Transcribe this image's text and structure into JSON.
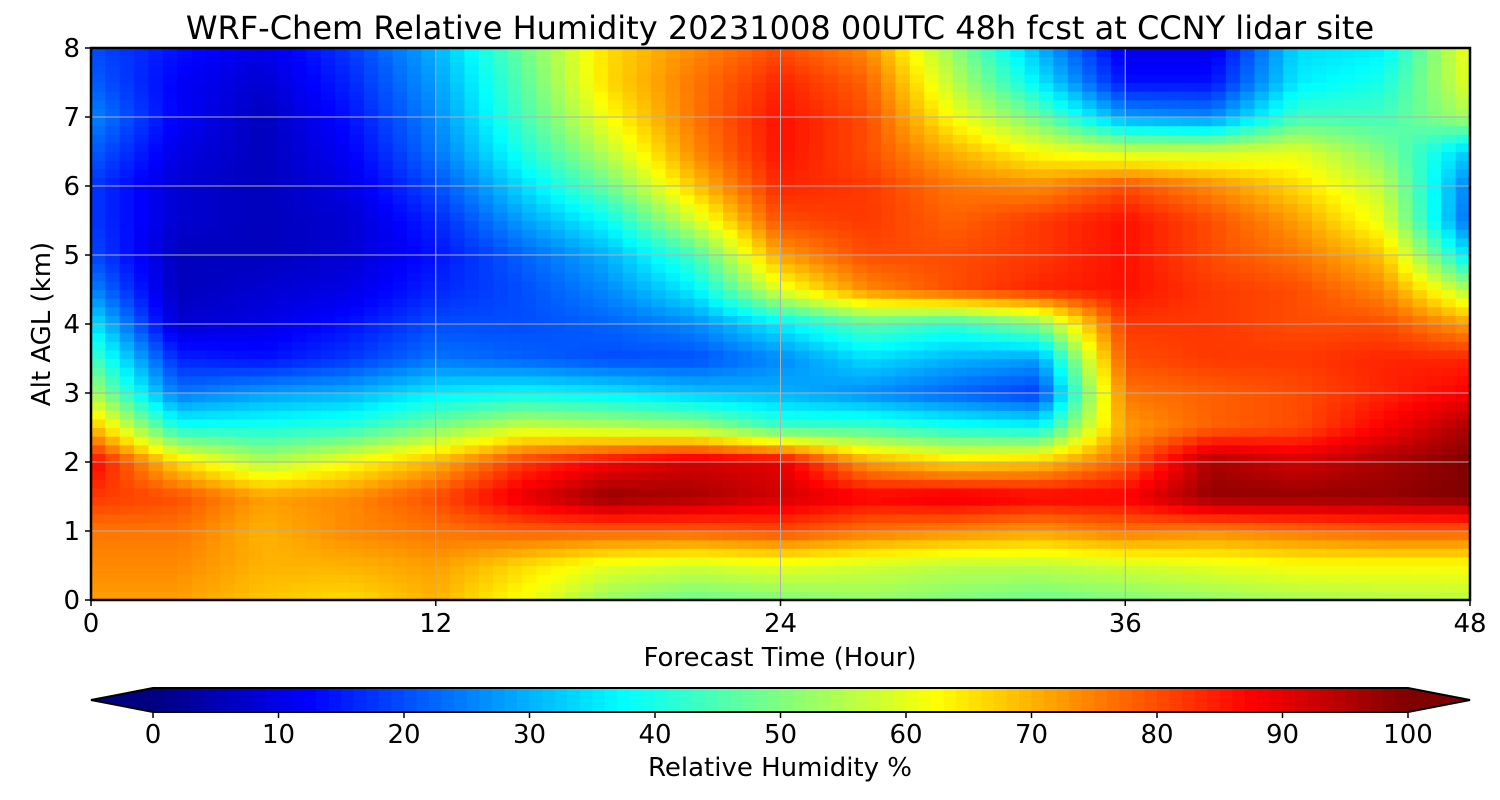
{
  "chart_data": {
    "type": "heatmap",
    "title": "WRF-Chem Relative Humidity 20231008 00UTC 48h fcst at CCNY lidar site",
    "xlabel": "Forecast Time (Hour)",
    "ylabel": "Alt AGL (km)",
    "xlim": [
      0,
      48
    ],
    "ylim": [
      0,
      8
    ],
    "xticks": [
      0,
      12,
      24,
      36,
      48
    ],
    "yticks": [
      0,
      1,
      2,
      3,
      4,
      5,
      6,
      7,
      8
    ],
    "grid": true,
    "colormap": "jet",
    "x": [
      0,
      3,
      6,
      9,
      12,
      15,
      18,
      21,
      24,
      27,
      30,
      33,
      36,
      39,
      42,
      45,
      48
    ],
    "y": [
      0,
      0.5,
      1,
      1.5,
      2,
      2.5,
      3,
      3.5,
      4,
      4.5,
      5,
      5.5,
      6,
      6.5,
      7,
      7.5,
      8
    ],
    "z": [
      [
        72,
        72,
        68,
        66,
        70,
        62,
        52,
        48,
        50,
        52,
        50,
        48,
        50,
        52,
        54,
        55,
        56
      ],
      [
        74,
        74,
        70,
        70,
        72,
        66,
        60,
        58,
        60,
        58,
        56,
        56,
        58,
        60,
        62,
        62,
        62
      ],
      [
        76,
        76,
        70,
        74,
        76,
        78,
        78,
        78,
        80,
        76,
        74,
        72,
        76,
        74,
        76,
        78,
        78
      ],
      [
        82,
        80,
        72,
        74,
        80,
        90,
        98,
        96,
        92,
        88,
        90,
        88,
        88,
        98,
        98,
        98,
        100
      ],
      [
        88,
        66,
        55,
        62,
        70,
        82,
        88,
        92,
        90,
        72,
        66,
        68,
        78,
        96,
        92,
        96,
        100
      ],
      [
        70,
        40,
        40,
        42,
        50,
        58,
        56,
        54,
        44,
        44,
        40,
        38,
        72,
        78,
        80,
        88,
        96
      ],
      [
        55,
        24,
        28,
        30,
        36,
        38,
        36,
        32,
        30,
        26,
        22,
        18,
        76,
        78,
        80,
        84,
        88
      ],
      [
        45,
        16,
        14,
        18,
        24,
        22,
        20,
        20,
        26,
        34,
        30,
        28,
        80,
        82,
        82,
        84,
        84
      ],
      [
        36,
        8,
        10,
        14,
        20,
        20,
        22,
        26,
        36,
        46,
        42,
        50,
        82,
        82,
        80,
        80,
        72
      ],
      [
        26,
        6,
        8,
        10,
        16,
        20,
        26,
        36,
        60,
        74,
        80,
        84,
        86,
        82,
        80,
        74,
        54
      ],
      [
        20,
        6,
        6,
        8,
        14,
        22,
        30,
        44,
        72,
        80,
        80,
        82,
        86,
        80,
        76,
        68,
        34
      ],
      [
        18,
        8,
        6,
        8,
        16,
        28,
        38,
        58,
        80,
        82,
        78,
        82,
        86,
        80,
        72,
        60,
        22
      ],
      [
        18,
        8,
        6,
        10,
        20,
        34,
        48,
        68,
        84,
        82,
        76,
        74,
        80,
        74,
        66,
        56,
        24
      ],
      [
        22,
        10,
        6,
        12,
        24,
        40,
        56,
        74,
        86,
        80,
        70,
        62,
        58,
        58,
        60,
        50,
        32
      ],
      [
        26,
        12,
        6,
        14,
        26,
        44,
        62,
        76,
        86,
        80,
        62,
        48,
        28,
        26,
        44,
        44,
        54
      ],
      [
        22,
        12,
        8,
        16,
        28,
        46,
        66,
        76,
        84,
        78,
        56,
        36,
        14,
        14,
        36,
        40,
        60
      ],
      [
        20,
        14,
        10,
        18,
        30,
        48,
        66,
        74,
        80,
        74,
        52,
        30,
        10,
        10,
        34,
        36,
        62
      ]
    ],
    "colorbar": {
      "label": "Relative Humidity %",
      "ticks": [
        0,
        10,
        20,
        30,
        40,
        50,
        60,
        70,
        80,
        90,
        100
      ],
      "range": [
        0,
        100
      ],
      "extend": "both"
    }
  }
}
